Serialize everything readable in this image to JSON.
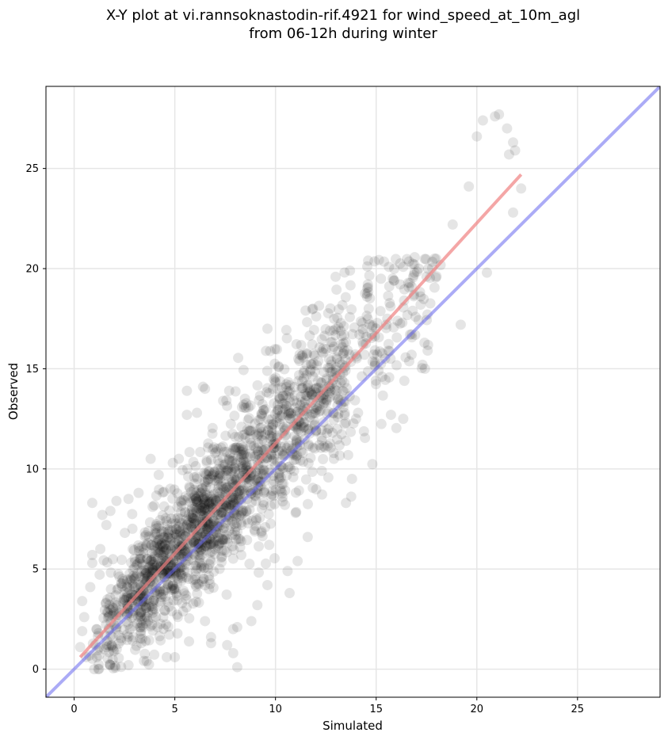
{
  "chart_data": {
    "type": "scatter",
    "title": "X-Y plot at vi.rannsoknastodin-rif.4921 for wind_speed_at_10m_agl",
    "subtitle": "from 06-12h during winter",
    "xlabel": "Simulated",
    "ylabel": "Observed",
    "xlim": [
      -1.4,
      29.1
    ],
    "ylim": [
      -1.4,
      29.1
    ],
    "xticks": [
      "0",
      "5",
      "10",
      "15",
      "20",
      "25"
    ],
    "yticks": [
      "0",
      "5",
      "10",
      "15",
      "20",
      "25"
    ],
    "grid": true,
    "point_color": "#000000",
    "point_alpha": 0.1,
    "fit_line": {
      "color": "#f08080",
      "x": [
        0.3,
        22.2
      ],
      "y": [
        0.6,
        24.7
      ]
    },
    "identity_line": {
      "color": "#6666ee",
      "x": [
        -1.4,
        29.1
      ],
      "y": [
        -1.4,
        29.1
      ]
    },
    "notable_points": [
      [
        20.3,
        27.4
      ],
      [
        20.9,
        27.6
      ],
      [
        21.1,
        27.7
      ],
      [
        21.5,
        27.0
      ],
      [
        20.0,
        26.6
      ],
      [
        21.8,
        26.3
      ],
      [
        21.9,
        25.9
      ],
      [
        21.6,
        25.7
      ],
      [
        22.2,
        24.0
      ],
      [
        21.8,
        22.8
      ],
      [
        19.6,
        24.1
      ],
      [
        18.8,
        22.2
      ],
      [
        17.9,
        20.5
      ],
      [
        19.2,
        17.2
      ],
      [
        20.5,
        19.8
      ],
      [
        17.4,
        16.3
      ],
      [
        17.3,
        15.2
      ],
      [
        16.4,
        14.4
      ],
      [
        15.3,
        14.6
      ],
      [
        14.1,
        12.8
      ],
      [
        13.5,
        11.4
      ],
      [
        13.8,
        9.5
      ],
      [
        13.5,
        8.3
      ],
      [
        11.6,
        6.6
      ],
      [
        11.1,
        5.4
      ],
      [
        10.6,
        4.9
      ],
      [
        10.7,
        3.8
      ],
      [
        9.6,
        4.2
      ],
      [
        9.1,
        3.2
      ],
      [
        8.8,
        2.4
      ],
      [
        7.9,
        2.0
      ],
      [
        8.1,
        2.1
      ],
      [
        7.6,
        1.2
      ],
      [
        7.9,
        0.8
      ],
      [
        8.1,
        0.1
      ],
      [
        6.8,
        1.6
      ],
      [
        6.8,
        1.3
      ],
      [
        6.5,
        2.4
      ],
      [
        5.0,
        0.6
      ],
      [
        4.6,
        0.6
      ],
      [
        3.6,
        0.4
      ],
      [
        2.7,
        0.2
      ],
      [
        1.8,
        0.2
      ],
      [
        1.0,
        0.0
      ],
      [
        1.2,
        0.0
      ],
      [
        0.6,
        0.6
      ],
      [
        0.3,
        1.1
      ],
      [
        0.4,
        1.9
      ],
      [
        0.5,
        2.6
      ],
      [
        0.4,
        3.4
      ],
      [
        0.8,
        4.1
      ],
      [
        0.9,
        5.3
      ],
      [
        0.9,
        5.7
      ],
      [
        1.3,
        6.0
      ],
      [
        0.9,
        8.3
      ],
      [
        1.4,
        7.7
      ],
      [
        1.6,
        7.2
      ],
      [
        1.8,
        7.9
      ],
      [
        2.1,
        8.4
      ],
      [
        2.7,
        8.5
      ],
      [
        3.2,
        8.8
      ],
      [
        3.8,
        10.5
      ],
      [
        4.2,
        9.7
      ],
      [
        4.9,
        10.3
      ],
      [
        5.2,
        10.5
      ],
      [
        5.6,
        13.9
      ],
      [
        5.6,
        12.7
      ],
      [
        6.1,
        12.8
      ],
      [
        6.4,
        14.1
      ],
      [
        6.5,
        14.0
      ],
      [
        7.4,
        13.4
      ],
      [
        7.7,
        13.9
      ],
      [
        9.6,
        17.0
      ],
      [
        10.1,
        14.0
      ],
      [
        3.1,
        5.2
      ],
      [
        2.4,
        4.5
      ],
      [
        4.1,
        6.3
      ],
      [
        6.7,
        4.0
      ],
      [
        8.3,
        5.7
      ],
      [
        12.3,
        9.9
      ],
      [
        11.0,
        7.8
      ],
      [
        12.9,
        10.5
      ],
      [
        14.0,
        12.5
      ],
      [
        15.9,
        19.4
      ],
      [
        16.9,
        19.8
      ],
      [
        17.5,
        19.6
      ],
      [
        16.3,
        17.3
      ],
      [
        15.5,
        17.2
      ],
      [
        14.6,
        20.4
      ],
      [
        13.7,
        19.9
      ]
    ]
  }
}
